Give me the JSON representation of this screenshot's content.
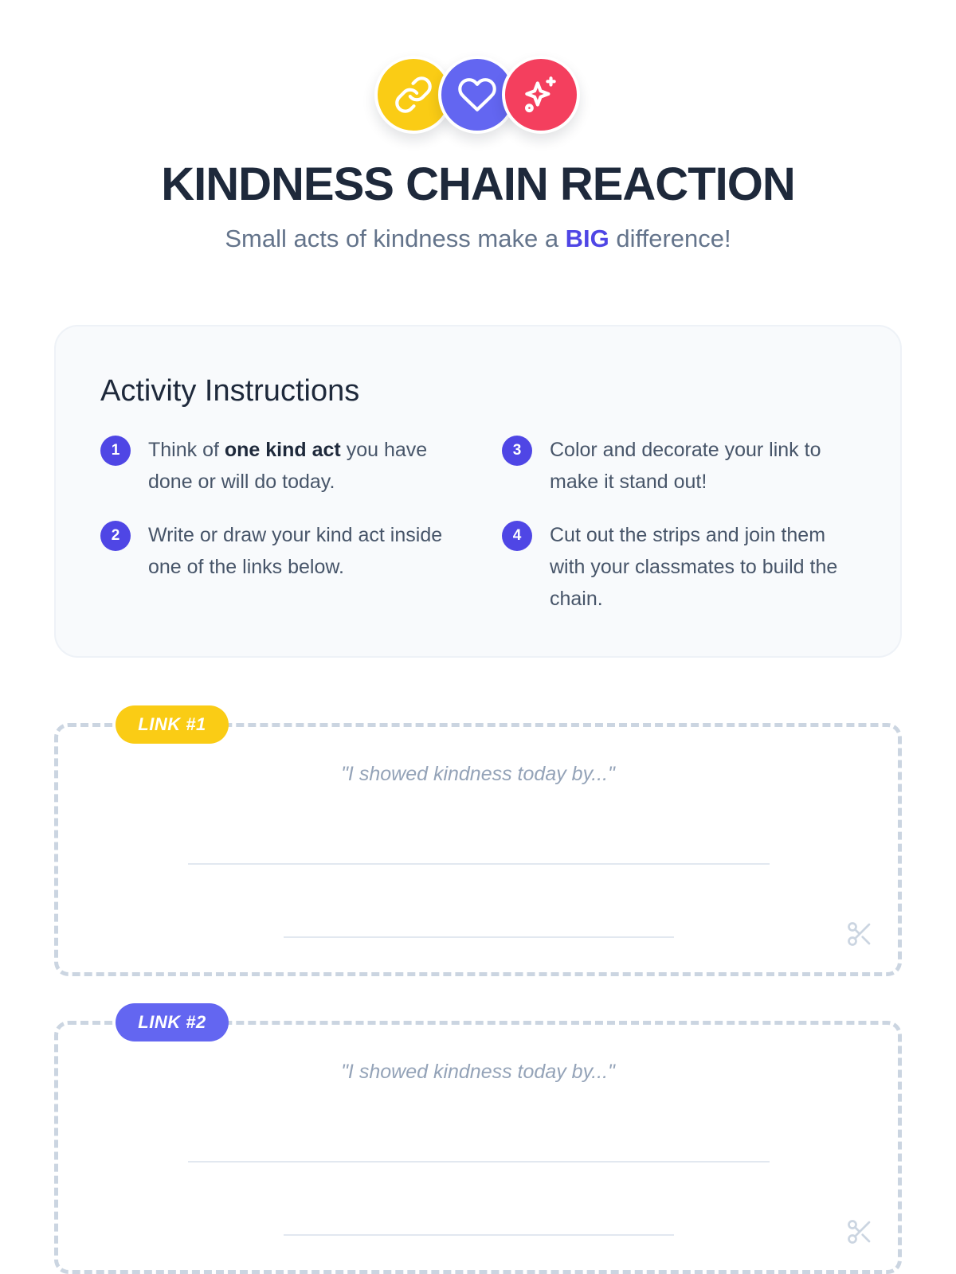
{
  "header": {
    "icons": [
      "link-icon",
      "heart-icon",
      "sparkles-icon"
    ],
    "icon_colors": [
      "#facc15",
      "#6366f1",
      "#f43f5e"
    ],
    "title": "KINDNESS CHAIN REACTION",
    "subtitle_before": "Small acts of kindness make a ",
    "subtitle_accent": "BIG",
    "subtitle_after": " difference!"
  },
  "instructions": {
    "title": "Activity Instructions",
    "steps": [
      {
        "number": "1",
        "text_before": "Think of ",
        "text_bold": "one kind act",
        "text_after": " you have done or will do today."
      },
      {
        "number": "2",
        "text": "Write or draw your kind act inside one of the links below."
      },
      {
        "number": "3",
        "text": "Color and decorate your link to make it stand out!"
      },
      {
        "number": "4",
        "text": "Cut out the strips and join them with your classmates to build the chain."
      }
    ]
  },
  "links": [
    {
      "label": "LINK #1",
      "prompt": "\"I showed kindness today by...\"",
      "tag_color": "#facc15"
    },
    {
      "label": "LINK #2",
      "prompt": "\"I showed kindness today by...\"",
      "tag_color": "#6366f1"
    }
  ],
  "colors": {
    "accent": "#4f46e5",
    "text_dark": "#1e293b",
    "text_muted": "#64748b",
    "dashed_border": "#cbd5e1"
  }
}
